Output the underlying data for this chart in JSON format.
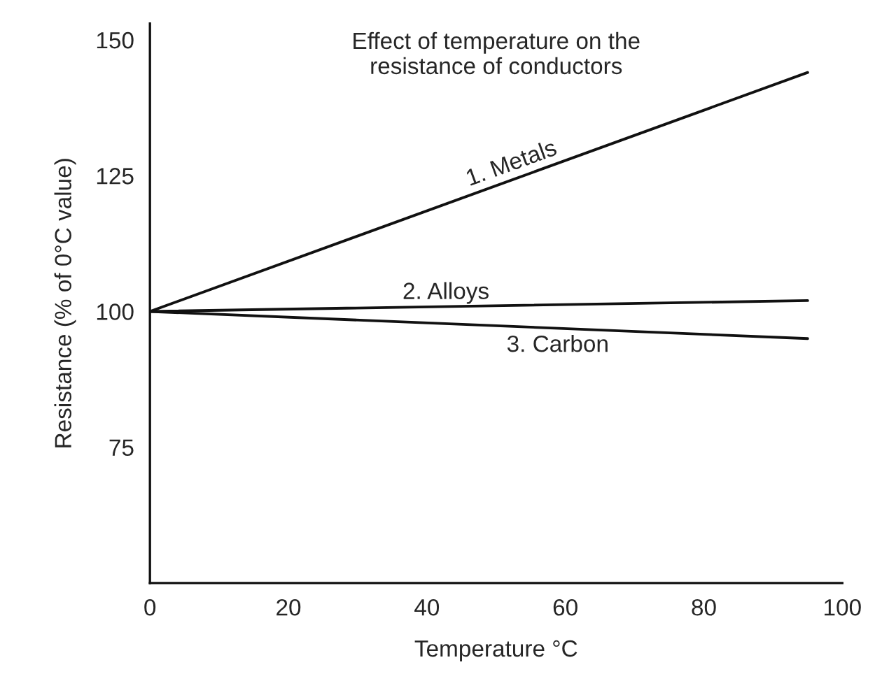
{
  "chart_data": {
    "type": "line",
    "title": "Effect of temperature on the\nresistance of conductors",
    "xlabel": "Temperature °C",
    "ylabel": "Resistance (% of 0°C value)",
    "x": [
      0,
      95
    ],
    "series": [
      {
        "name": "1. Metals",
        "color": "#111111",
        "values": [
          100,
          144
        ]
      },
      {
        "name": "2. Alloys",
        "color": "#111111",
        "values": [
          100,
          102
        ]
      },
      {
        "name": "3. Carbon",
        "color": "#111111",
        "values": [
          100,
          95
        ]
      }
    ],
    "xlim": [
      0,
      100
    ],
    "ylim": [
      50,
      153
    ],
    "xticks": [
      0,
      20,
      40,
      60,
      80,
      100
    ],
    "yticks": [
      75,
      100,
      125,
      150
    ],
    "grid": false,
    "legend": false,
    "marker": "none",
    "line_style": "solid"
  }
}
